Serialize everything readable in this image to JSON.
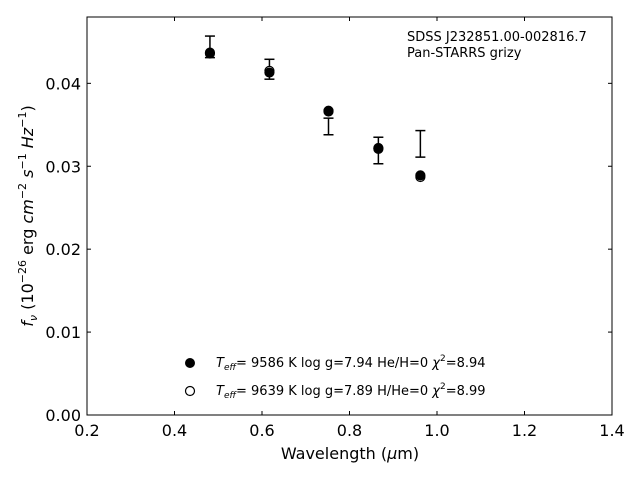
{
  "chart_data": {
    "type": "scatter",
    "annotation": [
      "SDSS J232851.00-002816.7",
      "Pan-STARRS grizy"
    ],
    "xlabel": "Wavelength (μm)",
    "ylabel": "fν (10⁻²⁶ erg cm⁻² s⁻¹ Hz⁻¹)",
    "xlim": [
      0.2,
      1.4
    ],
    "ylim": [
      0.0,
      0.048
    ],
    "xticks": [
      "0.2",
      "0.4",
      "0.6",
      "0.8",
      "1.0",
      "1.2",
      "1.4"
    ],
    "yticks": [
      "0.00",
      "0.01",
      "0.02",
      "0.03",
      "0.04"
    ],
    "grid": false,
    "legend_position": "bottom-center",
    "observed": {
      "x": [
        0.481,
        0.617,
        0.752,
        0.866,
        0.962
      ],
      "y": [
        0.0444,
        0.0417,
        0.0348,
        0.0319,
        0.0327
      ],
      "yerr": [
        0.0013,
        0.0012,
        0.001,
        0.0016,
        0.0016
      ]
    },
    "series": [
      {
        "legend": [
          "T",
          "eff",
          "=  9586 K  log g=7.94  He/H=0  ",
          "χ",
          "2",
          "=8.94"
        ],
        "marker": "filled-circle",
        "x": [
          0.481,
          0.617,
          0.752,
          0.866,
          0.962
        ],
        "y": [
          0.0437,
          0.0413,
          0.0367,
          0.0322,
          0.0289
        ]
      },
      {
        "legend": [
          "T",
          "eff",
          "=  9639 K  log g=7.89  H/He=0  ",
          "χ",
          "2",
          "=8.99"
        ],
        "marker": "open-circle",
        "x": [
          0.481,
          0.617,
          0.752,
          0.866,
          0.962
        ],
        "y": [
          0.0436,
          0.0415,
          0.0366,
          0.0321,
          0.0287
        ]
      }
    ]
  }
}
